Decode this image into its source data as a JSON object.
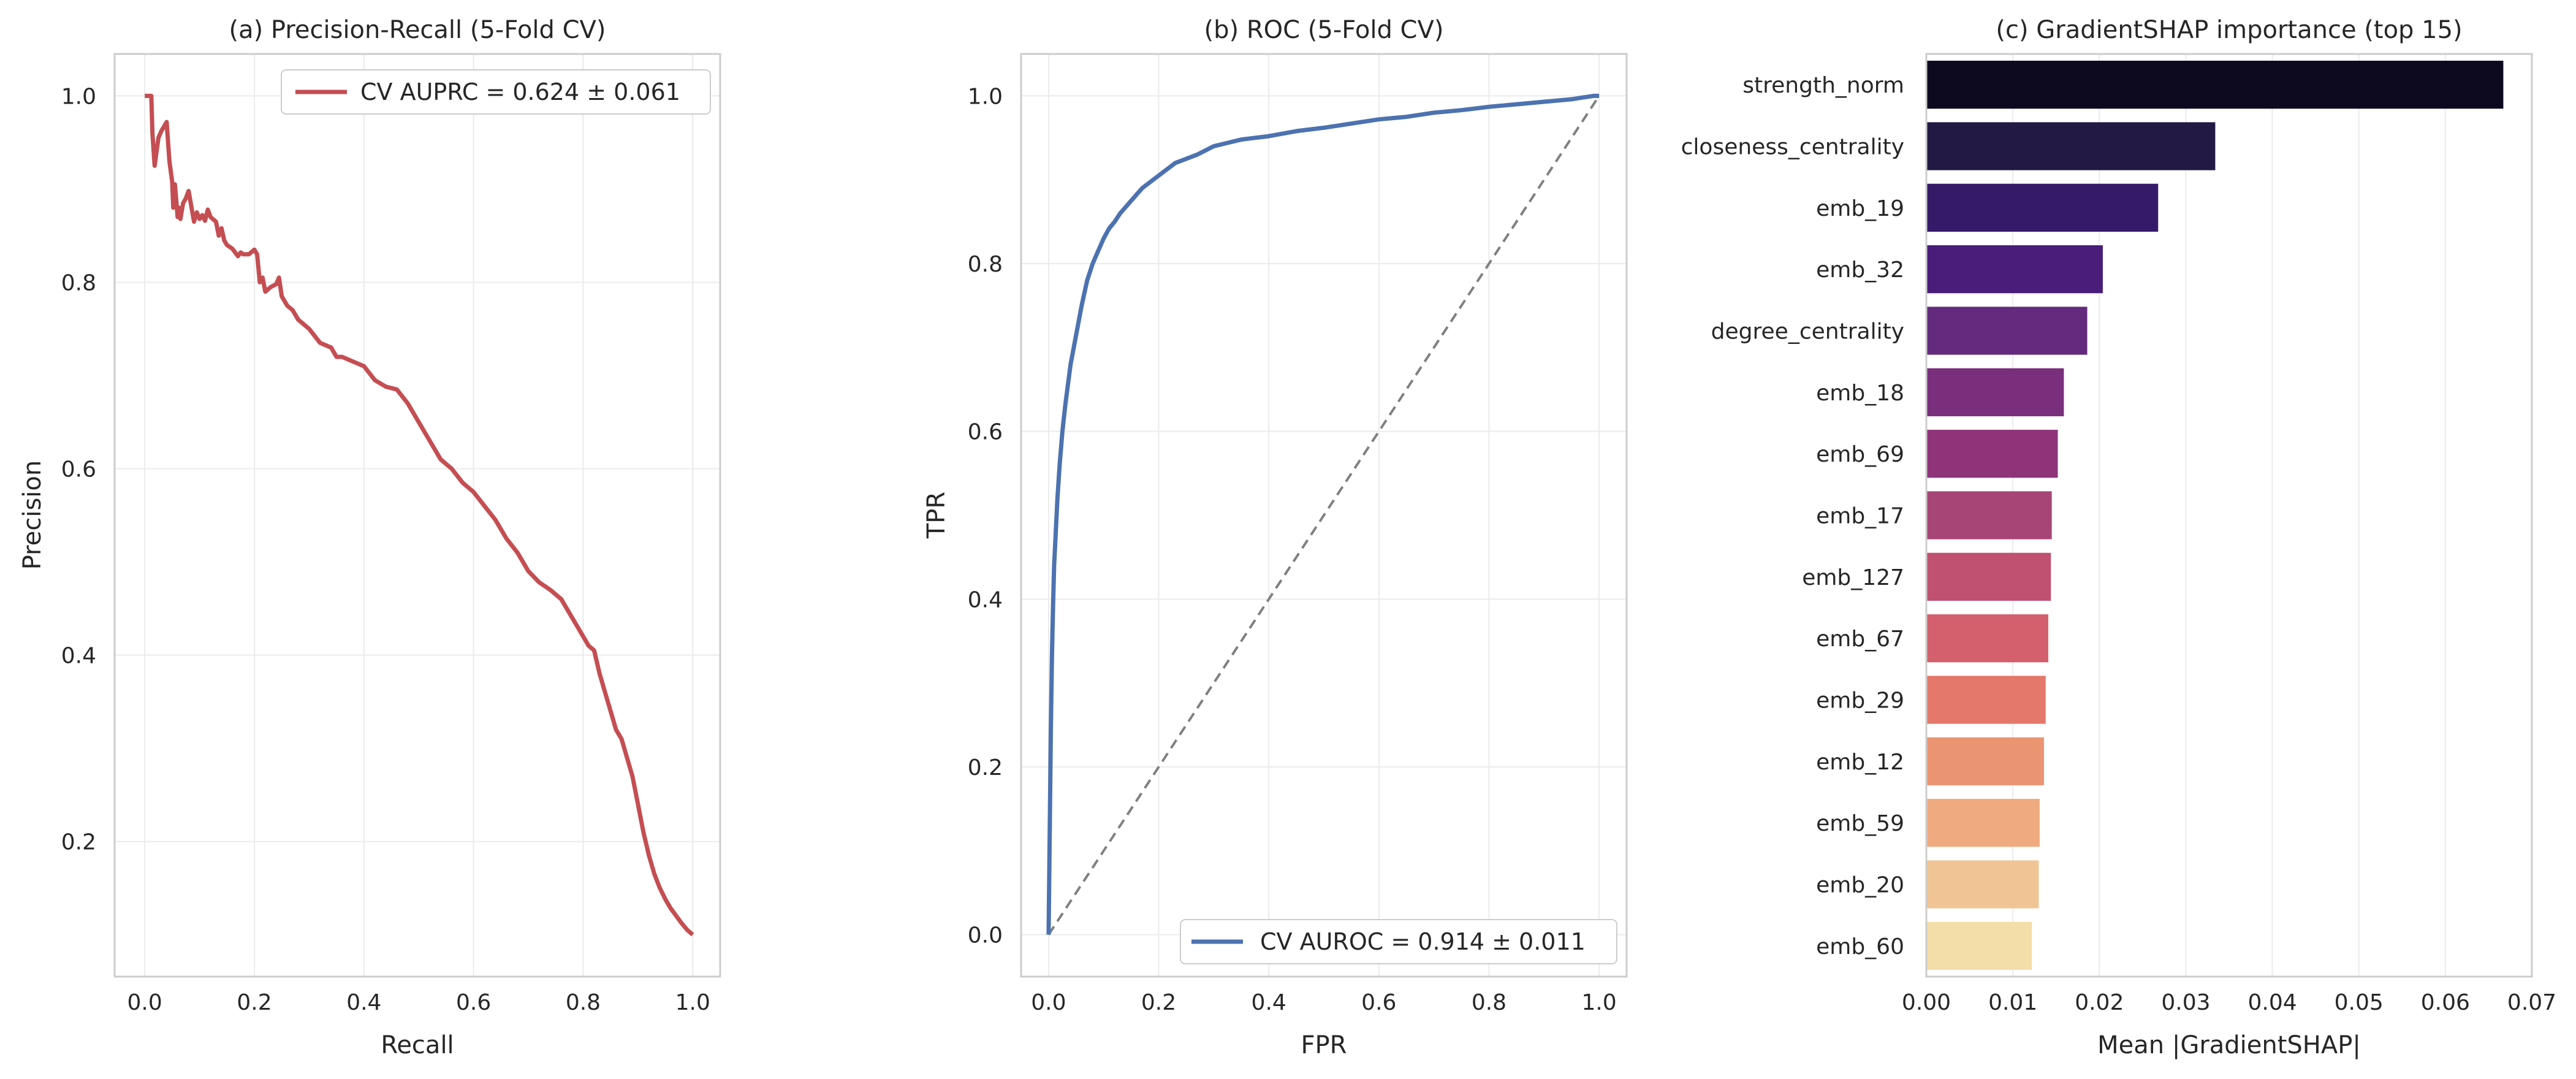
{
  "chart_data": [
    {
      "type": "line",
      "title": "(a) Precision-Recall (5-Fold CV)",
      "xlabel": "Recall",
      "ylabel": "Precision",
      "xlim": [
        -0.055,
        1.05
      ],
      "ylim": [
        0.055,
        1.045
      ],
      "xticks": [
        "0.0",
        "0.2",
        "0.4",
        "0.6",
        "0.8",
        "1.0"
      ],
      "yticks": [
        "0.2",
        "0.4",
        "0.6",
        "0.8",
        "1.0"
      ],
      "grid": true,
      "legend_position": "upper-right",
      "color": "#c44e52",
      "series": [
        {
          "name": "CV AUPRC = 0.624 ± 0.061",
          "x": [
            0.0,
            0.012,
            0.014,
            0.018,
            0.025,
            0.03,
            0.04,
            0.045,
            0.05,
            0.052,
            0.055,
            0.06,
            0.062,
            0.065,
            0.07,
            0.075,
            0.08,
            0.09,
            0.095,
            0.1,
            0.105,
            0.11,
            0.115,
            0.12,
            0.13,
            0.135,
            0.14,
            0.145,
            0.15,
            0.16,
            0.17,
            0.175,
            0.18,
            0.19,
            0.2,
            0.205,
            0.21,
            0.215,
            0.22,
            0.23,
            0.24,
            0.245,
            0.25,
            0.26,
            0.27,
            0.28,
            0.3,
            0.32,
            0.34,
            0.35,
            0.36,
            0.38,
            0.4,
            0.42,
            0.44,
            0.46,
            0.48,
            0.5,
            0.52,
            0.54,
            0.56,
            0.58,
            0.6,
            0.62,
            0.64,
            0.66,
            0.68,
            0.7,
            0.72,
            0.74,
            0.76,
            0.78,
            0.8,
            0.81,
            0.82,
            0.83,
            0.84,
            0.85,
            0.86,
            0.87,
            0.88,
            0.89,
            0.9,
            0.91,
            0.92,
            0.93,
            0.94,
            0.95,
            0.96,
            0.97,
            0.98,
            0.99,
            1.0
          ],
          "y": [
            1.0,
            1.0,
            0.96,
            0.925,
            0.955,
            0.962,
            0.972,
            0.93,
            0.908,
            0.88,
            0.905,
            0.87,
            0.88,
            0.868,
            0.885,
            0.89,
            0.898,
            0.865,
            0.875,
            0.868,
            0.872,
            0.866,
            0.878,
            0.87,
            0.865,
            0.85,
            0.858,
            0.845,
            0.84,
            0.836,
            0.828,
            0.832,
            0.83,
            0.83,
            0.835,
            0.83,
            0.8,
            0.805,
            0.79,
            0.795,
            0.798,
            0.805,
            0.785,
            0.775,
            0.77,
            0.76,
            0.75,
            0.735,
            0.73,
            0.72,
            0.72,
            0.715,
            0.71,
            0.695,
            0.688,
            0.685,
            0.67,
            0.65,
            0.63,
            0.61,
            0.6,
            0.585,
            0.575,
            0.56,
            0.545,
            0.525,
            0.51,
            0.49,
            0.478,
            0.47,
            0.46,
            0.44,
            0.42,
            0.41,
            0.405,
            0.38,
            0.36,
            0.34,
            0.32,
            0.31,
            0.29,
            0.27,
            0.24,
            0.21,
            0.185,
            0.165,
            0.15,
            0.138,
            0.128,
            0.12,
            0.112,
            0.105,
            0.1
          ]
        }
      ]
    },
    {
      "type": "line",
      "title": "(b) ROC (5-Fold CV)",
      "xlabel": "FPR",
      "ylabel": "TPR",
      "xlim": [
        -0.05,
        1.05
      ],
      "ylim": [
        -0.05,
        1.05
      ],
      "xticks": [
        "0.0",
        "0.2",
        "0.4",
        "0.6",
        "0.8",
        "1.0"
      ],
      "yticks": [
        "0.0",
        "0.2",
        "0.4",
        "0.6",
        "0.8",
        "1.0"
      ],
      "grid": true,
      "legend_position": "lower-right",
      "color": "#4c72b0",
      "diagonal_color": "#808080",
      "series": [
        {
          "name": "CV AUROC = 0.914 ± 0.011",
          "x": [
            0.0,
            0.002,
            0.004,
            0.006,
            0.008,
            0.01,
            0.013,
            0.016,
            0.02,
            0.025,
            0.03,
            0.035,
            0.04,
            0.05,
            0.06,
            0.07,
            0.08,
            0.09,
            0.1,
            0.11,
            0.12,
            0.13,
            0.15,
            0.17,
            0.2,
            0.23,
            0.27,
            0.3,
            0.35,
            0.4,
            0.45,
            0.5,
            0.55,
            0.6,
            0.65,
            0.7,
            0.75,
            0.8,
            0.85,
            0.9,
            0.95,
            0.97,
            0.99,
            1.0
          ],
          "y": [
            0.0,
            0.12,
            0.24,
            0.33,
            0.39,
            0.44,
            0.48,
            0.52,
            0.56,
            0.6,
            0.63,
            0.655,
            0.68,
            0.715,
            0.75,
            0.78,
            0.8,
            0.815,
            0.83,
            0.842,
            0.85,
            0.86,
            0.875,
            0.89,
            0.905,
            0.92,
            0.93,
            0.94,
            0.948,
            0.952,
            0.958,
            0.962,
            0.967,
            0.972,
            0.975,
            0.98,
            0.983,
            0.987,
            0.99,
            0.993,
            0.996,
            0.998,
            1.0,
            1.0
          ]
        }
      ],
      "diagonal": {
        "x": [
          0,
          1
        ],
        "y": [
          0,
          1
        ]
      }
    },
    {
      "type": "bar",
      "orientation": "horizontal",
      "title": "(c) GradientSHAP importance (top 15)",
      "xlabel": "Mean |GradientSHAP|",
      "ylabel": "",
      "xlim": [
        0,
        0.07
      ],
      "xticks": [
        "0.00",
        "0.01",
        "0.02",
        "0.03",
        "0.04",
        "0.05",
        "0.06",
        "0.07"
      ],
      "grid": true,
      "categories": [
        "strength_norm",
        "closeness_centrality",
        "emb_19",
        "emb_32",
        "degree_centrality",
        "emb_18",
        "emb_69",
        "emb_17",
        "emb_127",
        "emb_67",
        "emb_29",
        "emb_12",
        "emb_59",
        "emb_20",
        "emb_60"
      ],
      "values": [
        0.0667,
        0.0334,
        0.0268,
        0.0204,
        0.0186,
        0.0159,
        0.0152,
        0.0145,
        0.0144,
        0.0141,
        0.0138,
        0.0136,
        0.0131,
        0.013,
        0.0122
      ],
      "colors": [
        "#0d0a20",
        "#221a44",
        "#361a6a",
        "#4a1d7a",
        "#632a7d",
        "#7a2f7c",
        "#8f3479",
        "#a64576",
        "#c05171",
        "#d4606d",
        "#e4786b",
        "#eb9472",
        "#efab7f",
        "#f0c494",
        "#f3dda9"
      ]
    }
  ]
}
